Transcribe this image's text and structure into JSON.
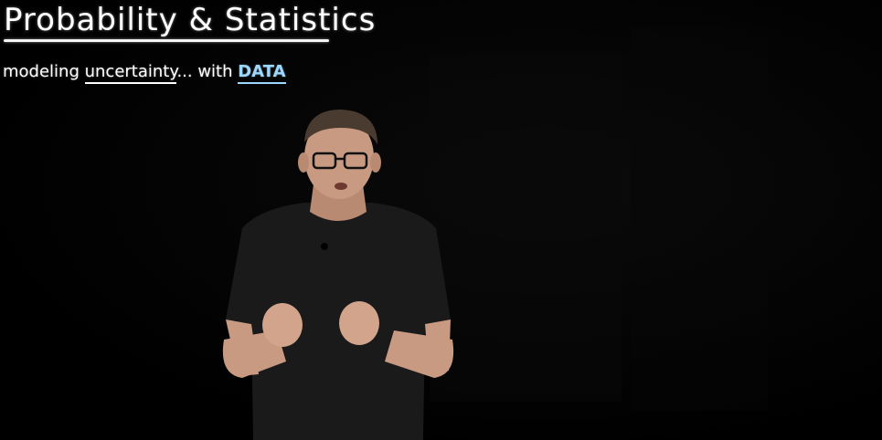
{
  "board": {
    "title": "Probability & Statistics",
    "subtitle_parts": {
      "a": "modeling ",
      "b": "uncertainty",
      "c": "... with ",
      "d": "DATA"
    }
  },
  "colors": {
    "background": "#000000",
    "chalk_white": "#ffffff",
    "chalk_blue": "#9bd7ff",
    "shirt": "#1a1a1a",
    "skin": "#c99a82",
    "hair": "#4a3b30"
  }
}
